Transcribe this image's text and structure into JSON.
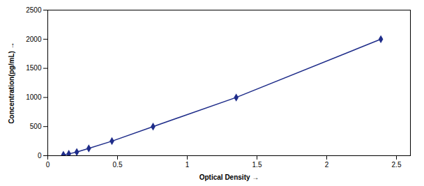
{
  "chart_data": {
    "type": "line",
    "xlabel": "Optical Density",
    "ylabel": "Concentration(pg/mL)",
    "x": [
      0.112,
      0.151,
      0.208,
      0.294,
      0.46,
      0.755,
      1.351,
      2.388
    ],
    "values": [
      15.6,
      31.2,
      62.5,
      125,
      250,
      500,
      1000,
      2000
    ],
    "color": "#1F2D8A",
    "marker": "diamond",
    "xlim": [
      0,
      2.6
    ],
    "ylim": [
      0,
      2500
    ],
    "xticks": [
      0,
      0.5,
      1,
      1.5,
      2,
      2.5
    ],
    "yticks": [
      0,
      500,
      1000,
      1500,
      2000,
      2500
    ],
    "grid": false
  }
}
